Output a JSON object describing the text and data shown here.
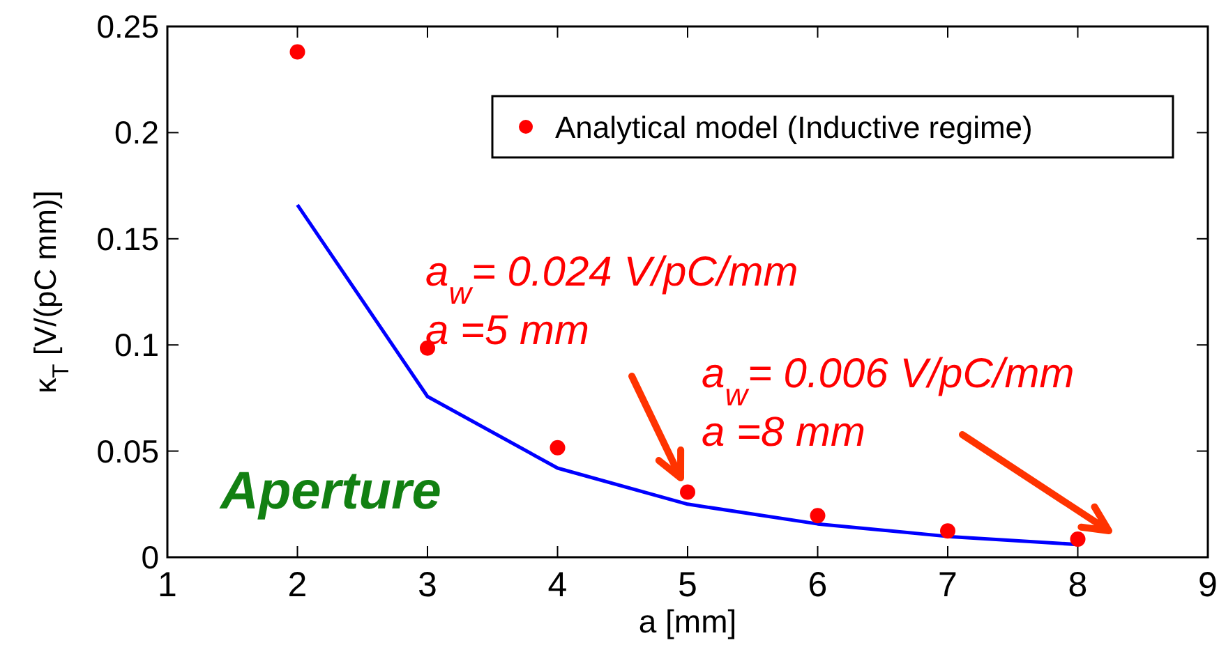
{
  "chart_data": {
    "type": "line",
    "xlabel": "a [mm]",
    "ylabel": "κ$_{T}$ [V/(pC mm)]",
    "x": [
      2,
      3,
      4,
      5,
      6,
      7,
      8
    ],
    "series": [
      {
        "color": "#0000ff",
        "marker": "none",
        "values": [
          0.166,
          0.0757,
          0.042,
          0.025,
          0.0157,
          0.0098,
          0.006
        ]
      },
      {
        "type": "scatter",
        "name": "Analytical model (Inductive regime)",
        "color": "#ff0000",
        "marker": "circle",
        "values": [
          0.238,
          0.0985,
          0.0516,
          0.0307,
          0.0196,
          0.0124,
          0.0085
        ]
      }
    ],
    "xlim": [
      1,
      9
    ],
    "xticks": [
      1,
      2,
      3,
      4,
      5,
      6,
      7,
      8,
      9
    ],
    "ylim": [
      0,
      0.25
    ],
    "yticks": [
      0,
      0.05,
      0.1,
      0.15,
      0.2,
      0.25
    ],
    "grid": false,
    "legend": "top right",
    "annotations": [
      "a$_{w}$= 0.024 V/pC/mm\na =5 mm",
      "a$_{w}$= 0.006 V/pC/mm\na =8 mm",
      "Aperture"
    ]
  }
}
